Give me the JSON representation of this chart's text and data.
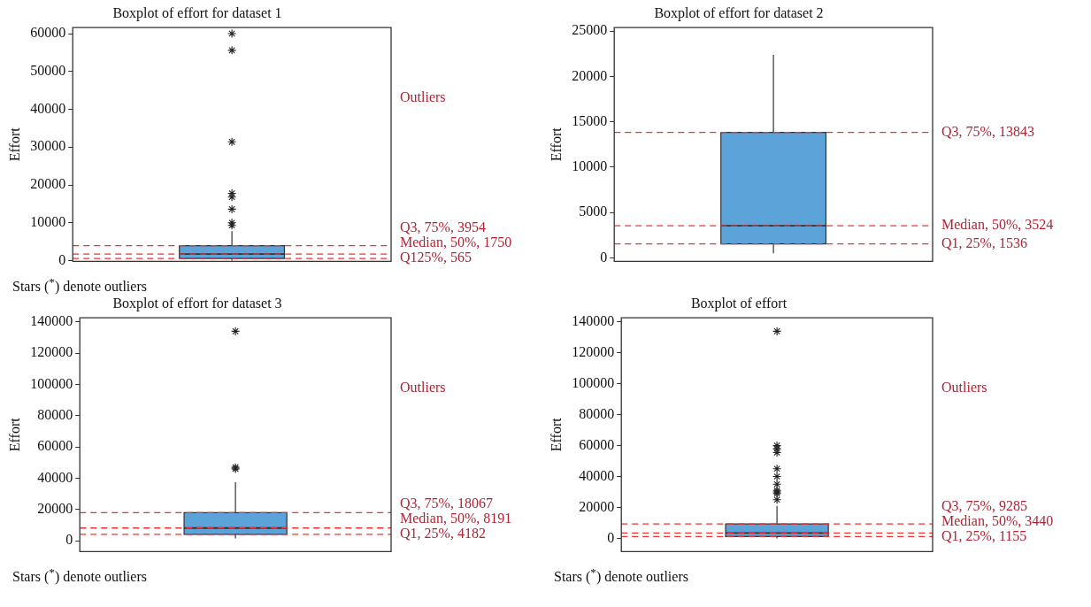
{
  "chart_data": [
    {
      "type": "box",
      "title": "Boxplot of effort for dataset 1",
      "ylabel": "Effort",
      "categories": [
        null
      ],
      "color": "#5ba3d9",
      "marker": "star",
      "tick_labels": "y",
      "legend": false,
      "ylim": [
        -200,
        61600
      ],
      "yticks": [
        0,
        10000,
        20000,
        30000,
        40000,
        50000,
        60000
      ],
      "boxes": [
        {
          "low": 0,
          "q1": 565,
          "median": 1750,
          "q3": 3954,
          "high": 7800,
          "outliers": [
            60000,
            55600,
            31400,
            17800,
            16800,
            13600,
            10000,
            9300
          ]
        }
      ],
      "ref_lines": [
        {
          "axis": "y",
          "value": 3954,
          "label": "Q3, 75%, 3954",
          "color": "#ee3333",
          "line_style": "dashed"
        },
        {
          "axis": "y",
          "value": 1750,
          "label": "Median, 50%, 1750",
          "color": "#ee3333",
          "line_style": "dashed"
        },
        {
          "axis": "y",
          "value": 565,
          "label": "Q125%, 565",
          "color": "#ee3333",
          "line_style": "dashed"
        }
      ],
      "annotations": [
        "Outliers",
        "Stars ($^{*}$) denote outliers"
      ]
    },
    {
      "type": "box",
      "title": "Boxplot of effort for dataset 2",
      "ylabel": "Effort",
      "categories": [
        null
      ],
      "color": "#5ba3d9",
      "tick_labels": "y",
      "legend": false,
      "ylim": [
        -400,
        25400
      ],
      "yticks": [
        0,
        5000,
        10000,
        15000,
        20000,
        25000
      ],
      "boxes": [
        {
          "low": 500,
          "q1": 1536,
          "median": 3524,
          "q3": 13843,
          "high": 22400
        }
      ],
      "ref_lines": [
        {
          "axis": "y",
          "value": 13843,
          "label": "Q3, 75%, 13843",
          "color": "#ee3333",
          "line_style": "dashed"
        },
        {
          "axis": "y",
          "value": 3524,
          "label": "Median, 50%, 3524",
          "color": "#ee3333",
          "line_style": "dashed"
        },
        {
          "axis": "y",
          "value": 1536,
          "label": "Q1, 25%, 1536",
          "color": "#ee3333",
          "line_style": "dashed"
        }
      ]
    },
    {
      "type": "box",
      "title": "Boxplot of effort for dataset 3",
      "ylabel": "Effort",
      "categories": [
        null
      ],
      "color": "#5ba3d9",
      "marker": "star",
      "tick_labels": "y",
      "legend": false,
      "ylim": [
        -6900,
        142600
      ],
      "yticks": [
        0,
        20000,
        40000,
        60000,
        80000,
        100000,
        120000,
        140000
      ],
      "boxes": [
        {
          "low": 1500,
          "q1": 4182,
          "median": 8191,
          "q3": 18067,
          "high": 37500,
          "outliers": [
            134000,
            47000,
            46000
          ]
        }
      ],
      "ref_lines": [
        {
          "axis": "y",
          "value": 18067,
          "label": "Q3, 75%, 18067",
          "color": "#ee3333",
          "line_style": "dashed"
        },
        {
          "axis": "y",
          "value": 8191,
          "label": "Median, 50%, 8191",
          "color": "#ee3333",
          "line_style": "dashed"
        },
        {
          "axis": "y",
          "value": 4182,
          "label": "Q1, 25%, 4182",
          "color": "#ee3333",
          "line_style": "dashed"
        }
      ],
      "annotations": [
        "Outliers",
        "Stars ($^{*}$) denote outliers"
      ]
    },
    {
      "type": "box",
      "title": "Boxplot of effort",
      "ylabel": "Effort",
      "categories": [
        null
      ],
      "color": "#5ba3d9",
      "marker": "star",
      "tick_labels": "y",
      "legend": false,
      "ylim": [
        -8600,
        142700
      ],
      "yticks": [
        0,
        20000,
        40000,
        60000,
        80000,
        100000,
        120000,
        140000
      ],
      "boxes": [
        {
          "low": 0,
          "q1": 1155,
          "median": 3440,
          "q3": 9285,
          "high": 21000,
          "outliers": [
            134000,
            60000,
            58000,
            55500,
            45000,
            40000,
            35000,
            31000,
            30000,
            29000,
            25000
          ]
        }
      ],
      "ref_lines": [
        {
          "axis": "y",
          "value": 9285,
          "label": "Q3, 75%, 9285",
          "color": "#ee3333",
          "line_style": "dashed"
        },
        {
          "axis": "y",
          "value": 3440,
          "label": "Median, 50%, 3440",
          "color": "#ee3333",
          "line_style": "dashed"
        },
        {
          "axis": "y",
          "value": 1155,
          "label": "Q1, 25%, 1155",
          "color": "#ee3333",
          "line_style": "dashed"
        }
      ],
      "annotations": [
        "Outliers",
        "Stars ($^{*}$) denote outliers"
      ]
    }
  ]
}
